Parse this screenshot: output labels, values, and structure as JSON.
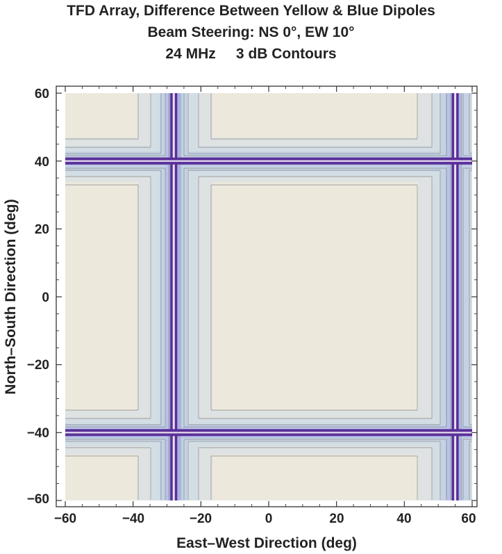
{
  "chart_data": {
    "type": "heatmap",
    "title_lines": [
      "TFD Array, Difference Between Yellow & Blue Dipoles",
      "Beam Steering: NS 0°, EW 10°",
      "24 MHz     3 dB Contours"
    ],
    "xlabel": "East–West Direction (deg)",
    "ylabel": "North–South Direction (deg)",
    "xlim": [
      -60,
      60
    ],
    "ylim": [
      -60,
      60
    ],
    "x_ticks": [
      -60,
      -40,
      -20,
      0,
      20,
      40,
      60
    ],
    "y_ticks": [
      -60,
      -40,
      -20,
      0,
      20,
      40,
      60
    ],
    "x_tick_labels": [
      "−60",
      "−40",
      "−20",
      "0",
      "20",
      "40",
      "60"
    ],
    "y_tick_labels": [
      "−60",
      "−40",
      "−20",
      "0",
      "20",
      "40",
      "60"
    ],
    "contour_step_db": 3,
    "null_lines": {
      "x": [
        -28,
        55
      ],
      "y": [
        -40,
        40
      ]
    },
    "background_level_color": "#ece8dc",
    "level_colors": [
      "#ece8dc",
      "#dfe2e2",
      "#d3dde4",
      "#c4d2e4",
      "#b7c3e6",
      "#a9b0e4",
      "#9a98dc",
      "#8272cc",
      "#5a2f98"
    ],
    "contour_line_color": "#8a8a8a",
    "grid": false
  }
}
